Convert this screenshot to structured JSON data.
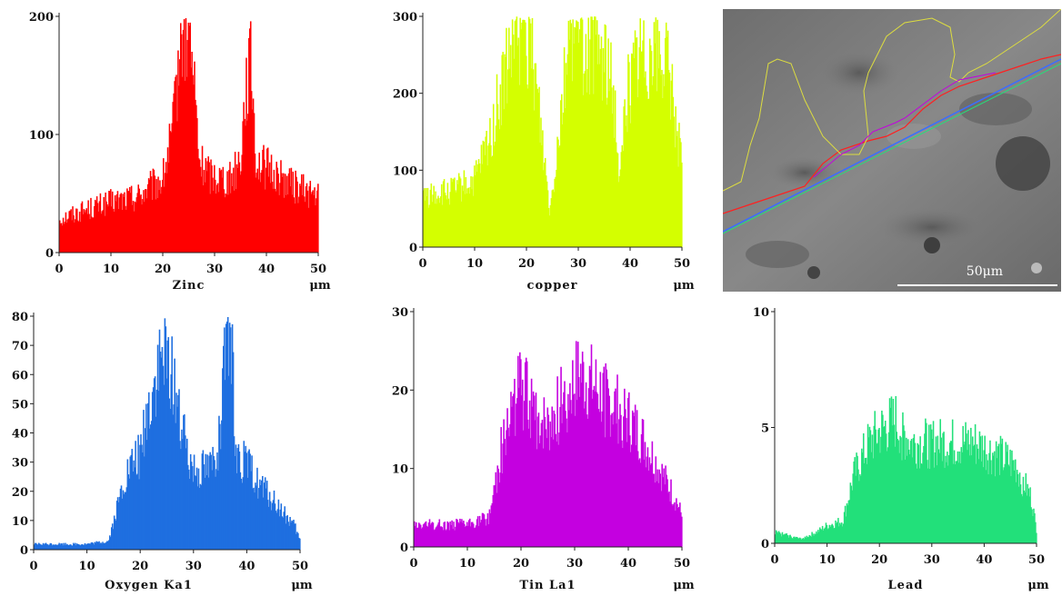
{
  "chart_data": [
    {
      "type": "bar",
      "name": "Zinc",
      "xlabel": "Zinc",
      "unit": "μm",
      "color": "#ff0000",
      "xlim": [
        0,
        50
      ],
      "ylim": [
        0,
        200
      ],
      "xticks": [
        0,
        10,
        20,
        30,
        40,
        50
      ],
      "yticks": [
        0,
        100,
        200
      ],
      "profile": [
        [
          0,
          30
        ],
        [
          5,
          38
        ],
        [
          10,
          45
        ],
        [
          15,
          50
        ],
        [
          20,
          65
        ],
        [
          22,
          110
        ],
        [
          23,
          170
        ],
        [
          24,
          198
        ],
        [
          25,
          190
        ],
        [
          26,
          150
        ],
        [
          27,
          80
        ],
        [
          29,
          70
        ],
        [
          33,
          65
        ],
        [
          35,
          85
        ],
        [
          36,
          150
        ],
        [
          37,
          170
        ],
        [
          38,
          80
        ],
        [
          40,
          75
        ],
        [
          45,
          60
        ],
        [
          50,
          50
        ]
      ]
    },
    {
      "type": "bar",
      "name": "copper",
      "xlabel": "copper",
      "unit": "μm",
      "color": "#d4ff00",
      "xlim": [
        0,
        50
      ],
      "ylim": [
        0,
        300
      ],
      "xticks": [
        0,
        10,
        20,
        30,
        40,
        50
      ],
      "yticks": [
        0,
        100,
        200,
        300
      ],
      "profile": [
        [
          0,
          70
        ],
        [
          5,
          75
        ],
        [
          10,
          90
        ],
        [
          13,
          150
        ],
        [
          16,
          240
        ],
        [
          18,
          290
        ],
        [
          21,
          280
        ],
        [
          23,
          150
        ],
        [
          24.5,
          50
        ],
        [
          26,
          150
        ],
        [
          28,
          285
        ],
        [
          32,
          280
        ],
        [
          35,
          260
        ],
        [
          37,
          200
        ],
        [
          38,
          80
        ],
        [
          39,
          200
        ],
        [
          42,
          275
        ],
        [
          46,
          270
        ],
        [
          48,
          220
        ],
        [
          50,
          100
        ]
      ]
    },
    {
      "type": "bar",
      "name": "Oxygen Ka1",
      "xlabel": "Oxygen Ka1",
      "unit": "μm",
      "color": "#1f6fe0",
      "xlim": [
        0,
        50
      ],
      "ylim": [
        0,
        80
      ],
      "xticks": [
        0,
        10,
        20,
        30,
        40,
        50
      ],
      "yticks": [
        0,
        10,
        20,
        30,
        40,
        50,
        60,
        70,
        80
      ],
      "profile": [
        [
          0,
          2
        ],
        [
          5,
          2
        ],
        [
          10,
          2
        ],
        [
          14,
          3
        ],
        [
          15,
          10
        ],
        [
          17,
          25
        ],
        [
          20,
          35
        ],
        [
          22,
          55
        ],
        [
          24,
          68
        ],
        [
          26,
          65
        ],
        [
          28,
          40
        ],
        [
          30,
          30
        ],
        [
          33,
          30
        ],
        [
          35,
          40
        ],
        [
          36,
          72
        ],
        [
          37,
          75
        ],
        [
          38,
          35
        ],
        [
          40,
          30
        ],
        [
          43,
          22
        ],
        [
          46,
          15
        ],
        [
          49,
          8
        ],
        [
          50,
          3
        ]
      ]
    },
    {
      "type": "bar",
      "name": "Tin La1",
      "xlabel": "Tin La1",
      "unit": "μm",
      "color": "#c400e0",
      "xlim": [
        0,
        50
      ],
      "ylim": [
        0,
        30
      ],
      "xticks": [
        0,
        10,
        20,
        30,
        40,
        50
      ],
      "yticks": [
        0,
        10,
        20,
        30
      ],
      "profile": [
        [
          0,
          3
        ],
        [
          5,
          3
        ],
        [
          10,
          3
        ],
        [
          14,
          4
        ],
        [
          16,
          12
        ],
        [
          18,
          18
        ],
        [
          20,
          22
        ],
        [
          22,
          18
        ],
        [
          25,
          16
        ],
        [
          28,
          20
        ],
        [
          31,
          23
        ],
        [
          34,
          21
        ],
        [
          37,
          19
        ],
        [
          40,
          17
        ],
        [
          43,
          14
        ],
        [
          46,
          10
        ],
        [
          49,
          6
        ],
        [
          50,
          4
        ]
      ]
    },
    {
      "type": "bar",
      "name": "Lead",
      "xlabel": "Lead",
      "unit": "μm",
      "color": "#22e07a",
      "xlim": [
        0,
        50
      ],
      "ylim": [
        0,
        10
      ],
      "xticks": [
        0,
        10,
        20,
        30,
        40,
        50
      ],
      "yticks": [
        0,
        5,
        10
      ],
      "profile": [
        [
          0,
          0.5
        ],
        [
          5,
          0.2
        ],
        [
          8,
          0.5
        ],
        [
          10,
          0.8
        ],
        [
          13,
          1
        ],
        [
          15,
          3
        ],
        [
          18,
          4.5
        ],
        [
          20,
          5
        ],
        [
          23,
          5.5
        ],
        [
          26,
          4.5
        ],
        [
          30,
          4.5
        ],
        [
          34,
          4.5
        ],
        [
          38,
          4.5
        ],
        [
          42,
          4
        ],
        [
          46,
          3.5
        ],
        [
          49,
          2
        ],
        [
          50,
          0.5
        ]
      ]
    }
  ],
  "sem_image": {
    "scale_bar_label": "50μm"
  }
}
